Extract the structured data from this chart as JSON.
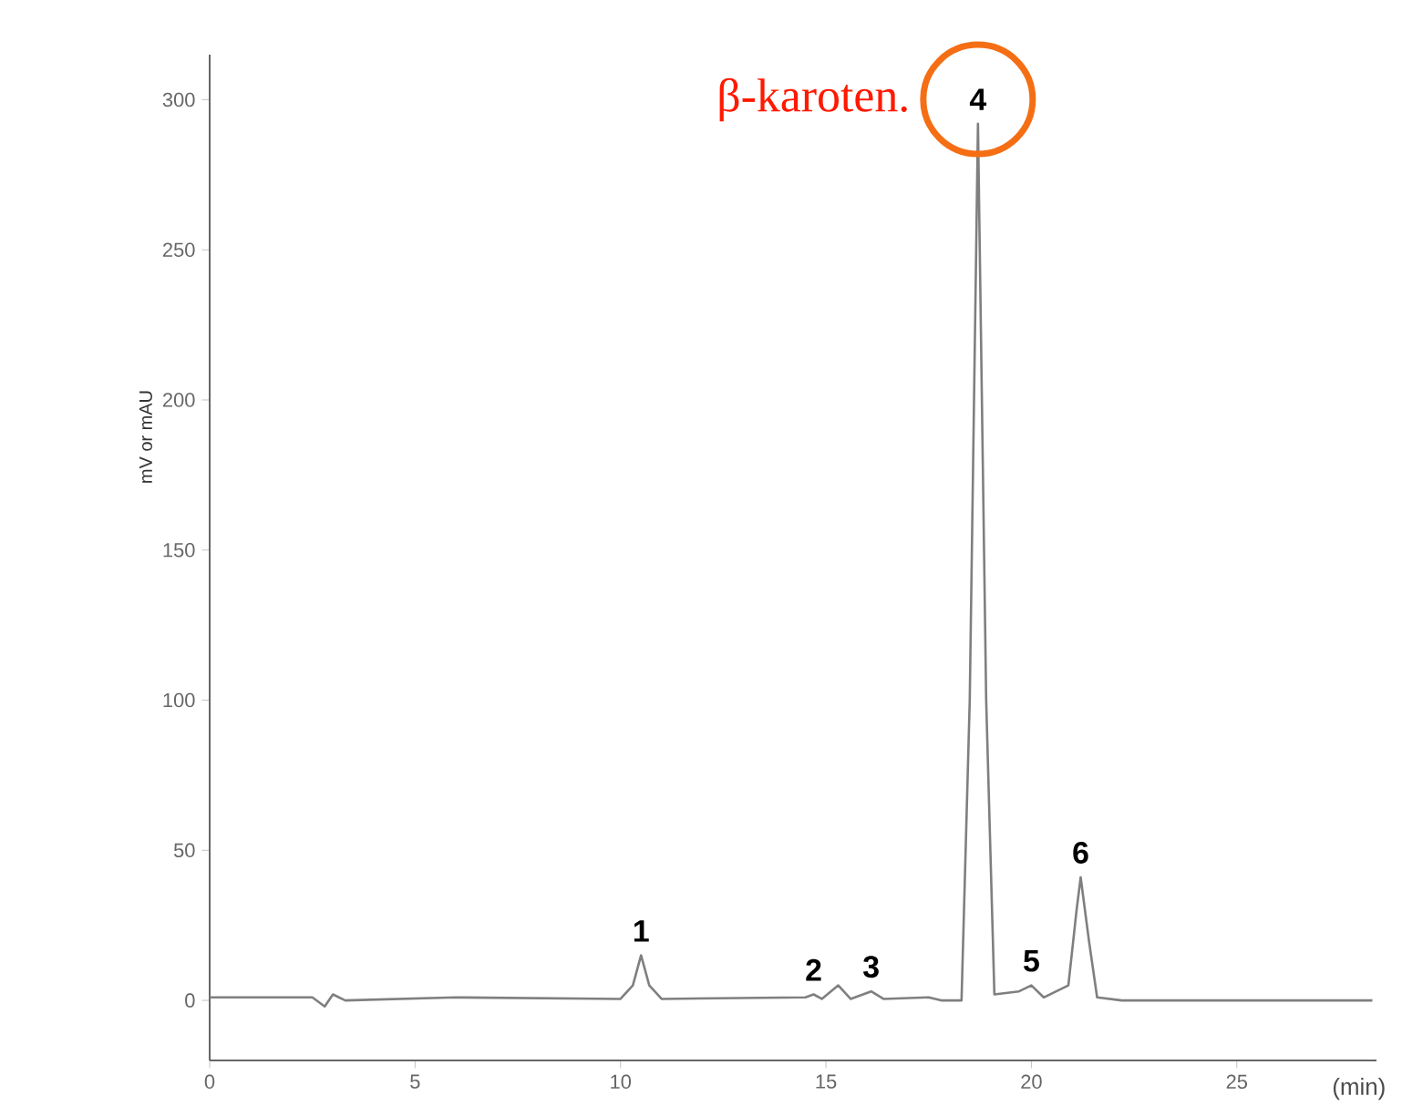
{
  "chart_data": {
    "type": "line",
    "xlabel": "(min)",
    "ylabel": "mV or mAU",
    "x": [
      0,
      2.5,
      2.8,
      3.0,
      3.3,
      6,
      10,
      10.3,
      10.5,
      10.7,
      11,
      14.5,
      14.7,
      14.9,
      15.3,
      15.6,
      16.1,
      16.4,
      17.5,
      17.8,
      18.3,
      18.5,
      18.7,
      18.9,
      19.1,
      19.7,
      20.0,
      20.3,
      20.9,
      21.1,
      21.2,
      21.4,
      21.6,
      22.2,
      28.3
    ],
    "series": [
      {
        "color": "#7f7f7f",
        "values": [
          1,
          1,
          -2,
          2,
          0,
          1,
          0.5,
          5,
          15,
          5,
          0.5,
          1,
          2,
          0.5,
          5,
          0.5,
          3,
          0.5,
          1,
          0,
          0,
          100,
          292,
          100,
          2,
          3,
          5,
          1,
          5,
          30,
          41,
          20,
          1,
          0,
          0
        ]
      }
    ],
    "xlim": [
      0,
      28.4
    ],
    "ylim": [
      -20,
      315
    ],
    "xticks": [
      0,
      5,
      10,
      15,
      20,
      25
    ],
    "yticks": [
      0,
      50,
      100,
      150,
      200,
      250,
      300
    ],
    "marker": "none",
    "line_style": "solid",
    "annotations": [
      "β-karoten.",
      {
        "text": "1",
        "x": 10.5,
        "y": 15
      },
      {
        "text": "2",
        "x": 14.7,
        "y": 2
      },
      {
        "text": "3",
        "x": 16.1,
        "y": 3
      },
      {
        "text": "4",
        "x": 18.7,
        "y": 292
      },
      {
        "text": "5",
        "x": 20.0,
        "y": 5
      },
      {
        "text": "6",
        "x": 21.2,
        "y": 41
      }
    ]
  }
}
